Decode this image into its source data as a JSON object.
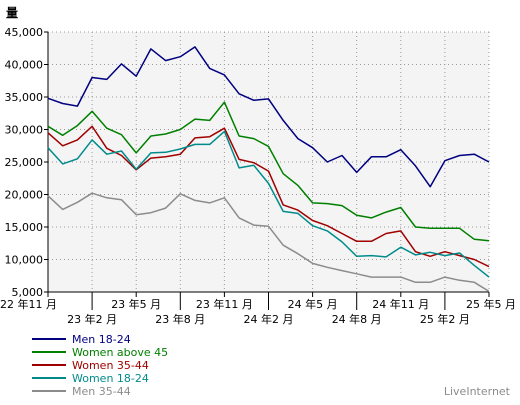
{
  "chart_data": {
    "type": "line",
    "ylabel": "量",
    "ylim": [
      5000,
      45000
    ],
    "y_ticks": [
      "5,000",
      "10,000",
      "15,000",
      "20,000",
      "25,000",
      "30,000",
      "35,000",
      "40,000",
      "45,000"
    ],
    "y_tick_values": [
      5000,
      10000,
      15000,
      20000,
      25000,
      30000,
      35000,
      40000,
      45000
    ],
    "x_ticks_row1": [
      {
        "label": "22 年11 月",
        "index": 0
      },
      {
        "label": "23 年5 月",
        "index": 6
      },
      {
        "label": "23 年11 月",
        "index": 12
      },
      {
        "label": "24 年5 月",
        "index": 18
      },
      {
        "label": "24 年11 月",
        "index": 24
      },
      {
        "label": "25 年5 月",
        "index": 30
      }
    ],
    "x_ticks_row2": [
      {
        "label": "23 年2 月",
        "index": 3
      },
      {
        "label": "23 年8 月",
        "index": 9
      },
      {
        "label": "24 年2 月",
        "index": 15
      },
      {
        "label": "24 年8 月",
        "index": 21
      },
      {
        "label": "25 年2 月",
        "index": 27
      }
    ],
    "x_count": 31,
    "grid": true,
    "legend_position": "bottom-left",
    "series": [
      {
        "name": "Men 18-24",
        "color": "#000080",
        "values": [
          34800,
          34000,
          33600,
          38000,
          37700,
          40100,
          38200,
          42400,
          40600,
          41200,
          42700,
          39400,
          38400,
          35500,
          34500,
          34700,
          31400,
          28600,
          27200,
          25000,
          26000,
          23400,
          25800,
          25800,
          26900,
          24400,
          21200,
          25200,
          26000,
          26200,
          25000
        ]
      },
      {
        "name": "Women above 45",
        "color": "#008000",
        "values": [
          30500,
          29100,
          30600,
          32800,
          30200,
          29200,
          26400,
          29000,
          29300,
          30000,
          31600,
          31400,
          34200,
          29000,
          28600,
          27400,
          23200,
          21400,
          18700,
          18600,
          18300,
          16800,
          16400,
          17300,
          18000,
          15000,
          14800,
          14800,
          14800,
          13100,
          12900
        ]
      },
      {
        "name": "Women 35-44",
        "color": "#a00000",
        "values": [
          29500,
          27500,
          28400,
          30500,
          27100,
          26000,
          23800,
          25600,
          25800,
          26200,
          28700,
          28900,
          30200,
          25400,
          24900,
          23600,
          18400,
          17600,
          16000,
          15200,
          14000,
          12800,
          12800,
          14000,
          14400,
          11200,
          10500,
          11200,
          10600,
          10000,
          8900
        ]
      },
      {
        "name": "Women 18-24",
        "color": "#008b8b",
        "values": [
          27200,
          24700,
          25500,
          28400,
          26200,
          26700,
          23900,
          26400,
          26500,
          27000,
          27700,
          27700,
          29700,
          24100,
          24500,
          21700,
          17400,
          17100,
          15200,
          14400,
          12700,
          10500,
          10600,
          10400,
          11900,
          10700,
          11100,
          10600,
          11000,
          9100,
          7300
        ]
      },
      {
        "name": "Men 35-44",
        "color": "#8c8c8c",
        "values": [
          19800,
          17700,
          18800,
          20200,
          19500,
          19200,
          16900,
          17200,
          17900,
          20100,
          19100,
          18700,
          19500,
          16400,
          15300,
          15100,
          12200,
          10900,
          9400,
          8800,
          8300,
          7800,
          7300,
          7300,
          7300,
          6500,
          6500,
          7300,
          6800,
          6500,
          5100
        ]
      }
    ]
  },
  "branding": "LiveInternet"
}
